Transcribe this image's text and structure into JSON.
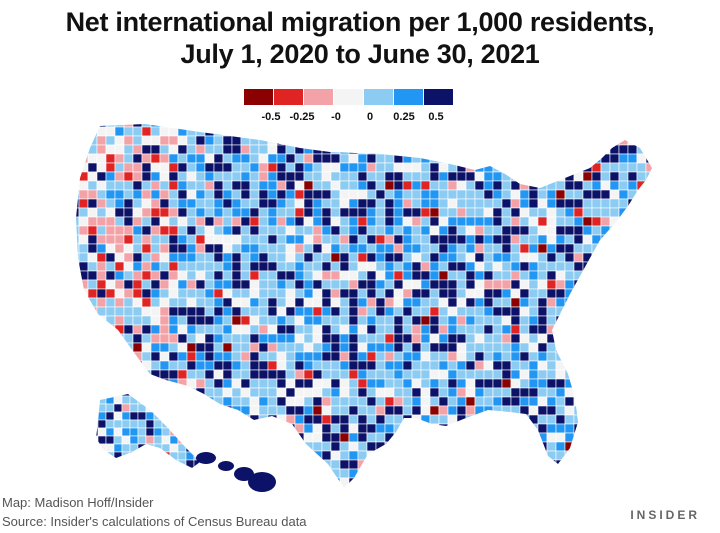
{
  "title": {
    "line1": "Net international migration per 1,000 residents,",
    "line2": "July 1, 2020 to June 30, 2021"
  },
  "legend": {
    "bins": [
      {
        "color": "#8b0000"
      },
      {
        "color": "#e02424"
      },
      {
        "color": "#f3a3a8"
      },
      {
        "color": "#f4f4f4"
      },
      {
        "color": "#8ccbf2"
      },
      {
        "color": "#2196f3"
      },
      {
        "color": "#0b1268"
      }
    ],
    "tick_labels": [
      "-0.5",
      "-0.25",
      "-0",
      "0",
      "0.25",
      "0.5"
    ]
  },
  "footer": {
    "map_credit": "Map: Madison Hoff/Insider",
    "source": "Source: Insider's calculations of Census Bureau data",
    "brand": "INSIDER"
  }
}
